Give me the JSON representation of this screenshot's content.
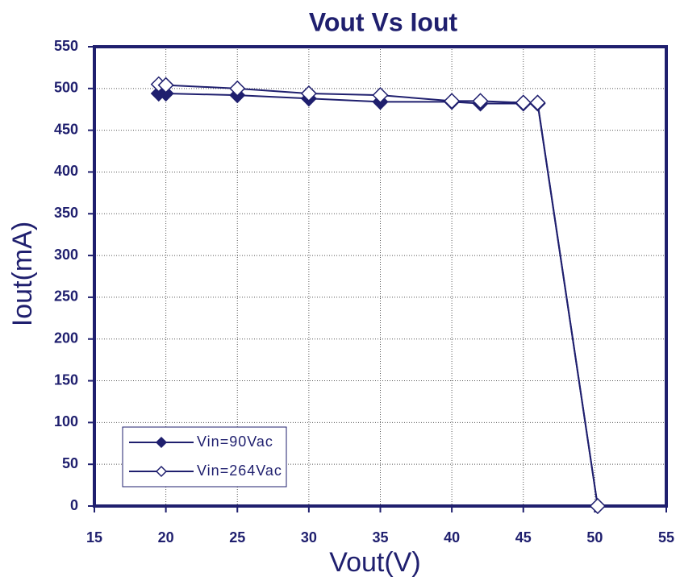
{
  "chart_data": {
    "type": "line",
    "title": "Vout Vs Iout",
    "x_label": "Vout(V)",
    "y_label": "Iout(mA)",
    "xlim": [
      15,
      55
    ],
    "xticks": [
      15,
      20,
      25,
      30,
      35,
      40,
      45,
      50,
      55
    ],
    "ylim": [
      0,
      550
    ],
    "yticks": [
      0,
      50,
      100,
      150,
      200,
      250,
      300,
      350,
      400,
      450,
      500,
      550
    ],
    "grid": true,
    "legend": "lower left",
    "series": [
      {
        "name": "Vin=90Vac",
        "color": "#1f1f6e",
        "marker": "filled-diamond",
        "x": [
          19.5,
          20,
          25,
          30,
          35,
          40,
          42,
          45,
          46,
          50.2
        ],
        "values": [
          494,
          494,
          492,
          488,
          484,
          484,
          482,
          482,
          482,
          0
        ]
      },
      {
        "name": "Vin=264Vac",
        "color": "#1f1f6e",
        "marker": "open-diamond",
        "x": [
          19.5,
          20,
          25,
          30,
          35,
          40,
          42,
          45,
          46,
          50.2
        ],
        "values": [
          505,
          504,
          500,
          494,
          492,
          485,
          485,
          483,
          483,
          0
        ]
      }
    ]
  }
}
